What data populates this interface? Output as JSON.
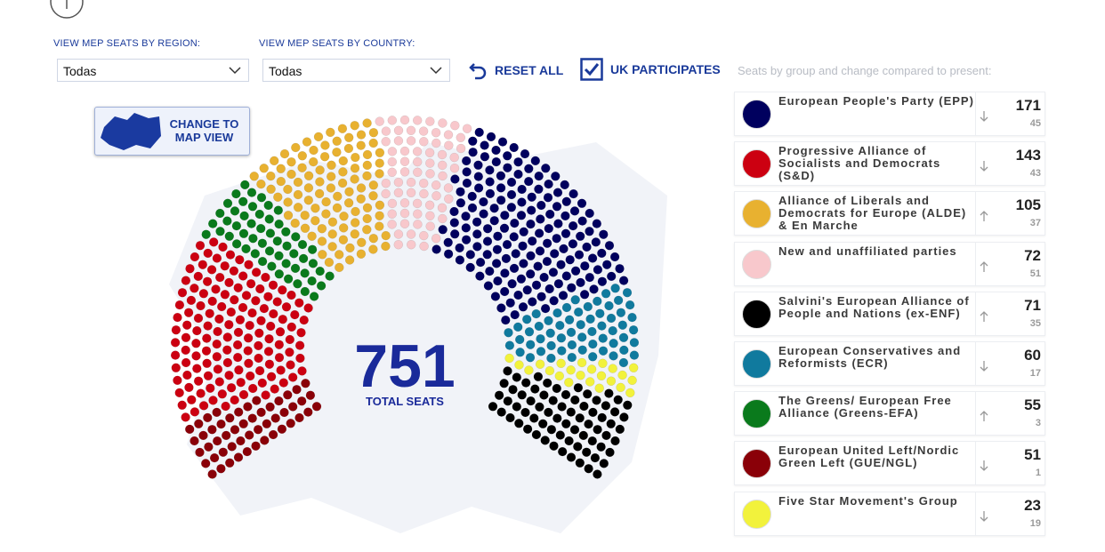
{
  "filters": {
    "region_label": "VIEW MEP SEATS BY REGION:",
    "region_value": "Todas",
    "country_label": "VIEW MEP SEATS BY COUNTRY:",
    "country_value": "Todas",
    "reset": "RESET ALL",
    "uk": "UK PARTICIPATES",
    "caption": "Seats by group and change compared to present:"
  },
  "map_button": [
    "CHANGE TO",
    "MAP VIEW"
  ],
  "total": {
    "value": 751,
    "label": "TOTAL SEATS"
  },
  "groups": [
    {
      "name": "European People's Party (EPP)",
      "color": "#00005e",
      "seats": 171,
      "change": 45,
      "trend": "down"
    },
    {
      "name": "Progressive Alliance of Socialists and Democrats (S&D)",
      "color": "#cc0011",
      "seats": 143,
      "change": 43,
      "trend": "down"
    },
    {
      "name": "Alliance of Liberals and Democrats for Europe (ALDE) & En Marche",
      "color": "#e8b130",
      "seats": 105,
      "change": 37,
      "trend": "up"
    },
    {
      "name": "New and unaffiliated parties",
      "color": "#f8c8cc",
      "seats": 72,
      "change": 51,
      "trend": "up"
    },
    {
      "name": "Salvini's European Alliance of People and Nations (ex-ENF)",
      "color": "#000000",
      "seats": 71,
      "change": 35,
      "trend": "up"
    },
    {
      "name": "European Conservatives and Reformists (ECR)",
      "color": "#107a9e",
      "seats": 60,
      "change": 17,
      "trend": "down"
    },
    {
      "name": "The Greens/ European Free Alliance (Greens-EFA)",
      "color": "#0a7a1c",
      "seats": 55,
      "change": 3,
      "trend": "up"
    },
    {
      "name": "European United Left/Nordic Green Left (GUE/NGL)",
      "color": "#8a0008",
      "seats": 51,
      "change": 1,
      "trend": "down"
    },
    {
      "name": "Five Star Movement's Group",
      "color": "#f2f23c",
      "seats": 23,
      "change": 19,
      "trend": "down"
    }
  ]
}
